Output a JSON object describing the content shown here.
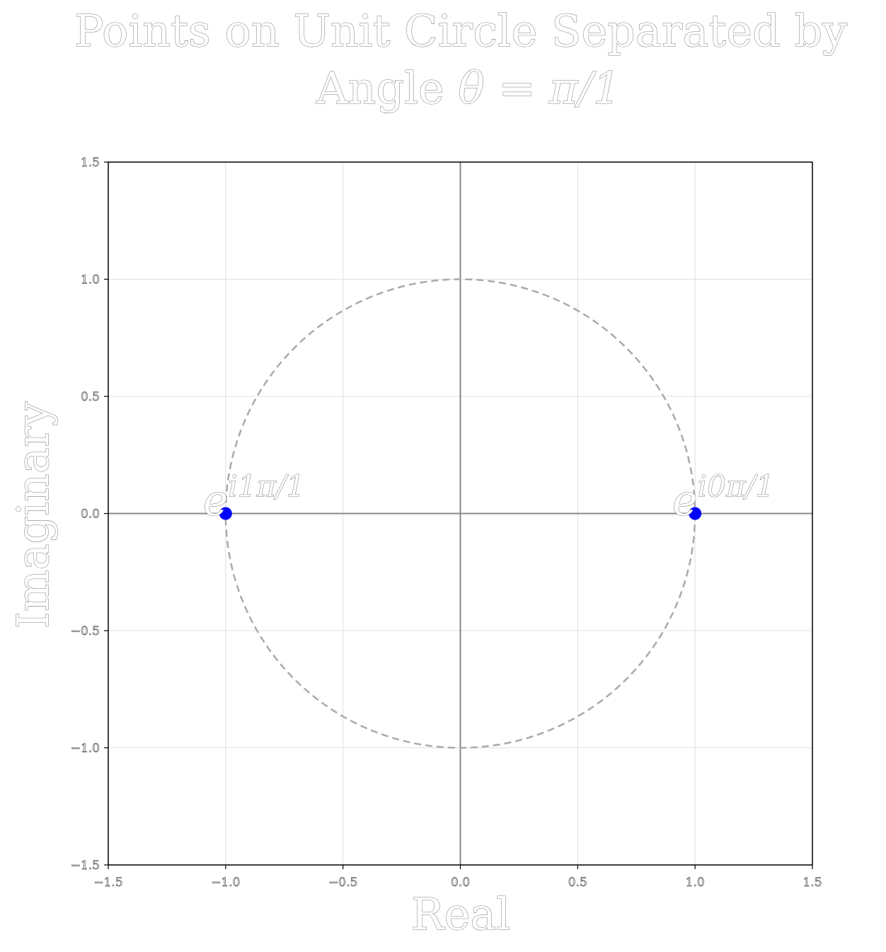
{
  "chart_data": {
    "type": "scatter",
    "title_line1": "Points on Unit Circle Separated by",
    "title_line2_text": "Angle ",
    "title_line2_math": "θ = π/1",
    "xlabel": "Real",
    "ylabel": "Imaginary",
    "xlim": [
      -1.5,
      1.5
    ],
    "ylim": [
      -1.5,
      1.5
    ],
    "xticks": [
      "−1.5",
      "−1.0",
      "−0.5",
      "0.0",
      "0.5",
      "1.0",
      "1.5"
    ],
    "xtick_values": [
      -1.5,
      -1.0,
      -0.5,
      0.0,
      0.5,
      1.0,
      1.5
    ],
    "yticks": [
      "−1.5",
      "−1.0",
      "−0.5",
      "0.0",
      "0.5",
      "1.0",
      "1.5"
    ],
    "ytick_values": [
      -1.5,
      -1.0,
      -0.5,
      0.0,
      0.5,
      1.0,
      1.5
    ],
    "grid": true,
    "unit_circle": {
      "radius": 1,
      "style": "dashed",
      "color": "#aaaaaa"
    },
    "points": [
      {
        "x": 1.0,
        "y": 0.0,
        "label_base": "e",
        "label_exp": "i0π/1"
      },
      {
        "x": -1.0,
        "y": 0.0,
        "label_base": "e",
        "label_exp": "i1π/1"
      }
    ],
    "point_color": "#0000ff",
    "axis_line_color": "#888888",
    "grid_color": "#e0e0e0",
    "frame_color": "#000000"
  }
}
